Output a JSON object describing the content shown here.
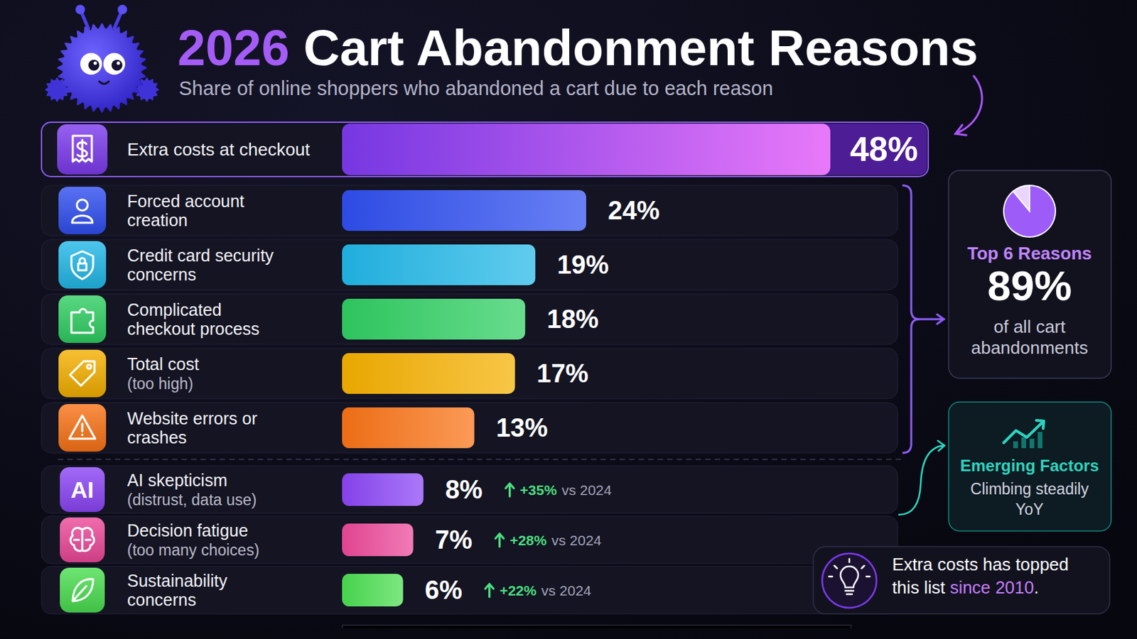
{
  "chart_data": {
    "type": "bar",
    "title": "2026 Cart Abandonment Reasons",
    "subtitle": "Share of online shoppers who abandoned a cart due to each reason",
    "orientation": "horizontal",
    "categories": [
      "Extra costs at checkout",
      "Forced account creation",
      "Credit card security concerns",
      "Complicated checkout process",
      "Total cost (too high)",
      "Website errors or crashes",
      "AI skepticism (distrust, data use)",
      "Decision fatigue (too many choices)",
      "Sustainability concerns"
    ],
    "values": [
      48,
      24,
      19,
      18,
      17,
      13,
      8,
      7,
      6
    ],
    "value_labels": [
      "48%",
      "24%",
      "19%",
      "18%",
      "17%",
      "13%",
      "8%",
      "7%",
      "6%"
    ],
    "colors": [
      "#7c3aed",
      "#2f4ff0",
      "#22b8e8",
      "#2fcf62",
      "#f5b000",
      "#f97316",
      "#8b45f6",
      "#ec4899",
      "#4ade50"
    ],
    "icon_labels": [
      null,
      null,
      null,
      null,
      null,
      null,
      "AI",
      null,
      null
    ],
    "yoy_change": [
      null,
      null,
      null,
      null,
      null,
      null,
      35,
      28,
      22
    ],
    "yoy_change_labels": [
      null,
      null,
      null,
      null,
      null,
      null,
      "+35%",
      "+28%",
      "+22%"
    ],
    "yoy_change_reference": "vs 2024",
    "xlim": [
      0,
      50
    ],
    "xticks": [
      0,
      50
    ],
    "tick_labels": false,
    "grid": false,
    "data_labels": true,
    "annotations": [
      {
        "title": "Top 6 Reasons",
        "value": 89,
        "value_label": "89%",
        "text": "of all cart abandonments"
      },
      {
        "title": "Emerging Factors",
        "text": "Climbing steadily YoY"
      },
      {
        "text_parts": [
          {
            "text": "Extra costs has topped this list "
          },
          {
            "text": "since 2010",
            "color": "#c77dff"
          },
          {
            "text": "."
          }
        ]
      }
    ]
  }
}
